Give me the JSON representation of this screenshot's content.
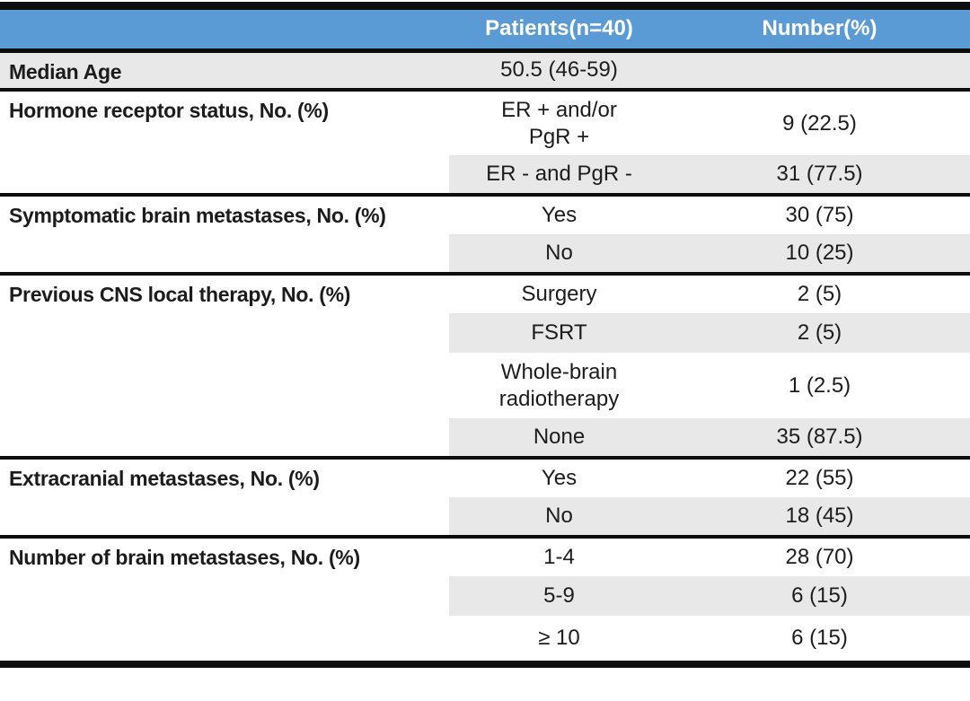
{
  "table": {
    "columns": [
      "",
      "Patients(n=40)",
      "Number(%)"
    ],
    "groups": [
      {
        "label": "Median Age",
        "full_row_shade": true,
        "rows": [
          {
            "category": "50.5 (46-59)",
            "value": "",
            "shaded": true
          }
        ]
      },
      {
        "label": "Hormone receptor status, No. (%)",
        "full_row_shade": false,
        "rows": [
          {
            "category": "ER + and/or\nPgR +",
            "value": "9 (22.5)",
            "shaded": false
          },
          {
            "category": "ER - and PgR -",
            "value": "31 (77.5)",
            "shaded": true
          }
        ]
      },
      {
        "label": "Symptomatic brain metastases, No. (%)",
        "full_row_shade": false,
        "rows": [
          {
            "category": "Yes",
            "value": "30 (75)",
            "shaded": false
          },
          {
            "category": "No",
            "value": "10 (25)",
            "shaded": true
          }
        ]
      },
      {
        "label": "Previous CNS local therapy, No. (%)",
        "full_row_shade": false,
        "rows": [
          {
            "category": "Surgery",
            "value": "2 (5)",
            "shaded": false
          },
          {
            "category": "FSRT",
            "value": "2 (5)",
            "shaded": true
          },
          {
            "category": "Whole-brain\nradiotherapy",
            "value": "1 (2.5)",
            "shaded": false
          },
          {
            "category": "None",
            "value": "35 (87.5)",
            "shaded": true
          }
        ]
      },
      {
        "label": "Extracranial metastases, No. (%)",
        "full_row_shade": false,
        "rows": [
          {
            "category": "Yes",
            "value": "22 (55)",
            "shaded": false
          },
          {
            "category": "No",
            "value": "18 (45)",
            "shaded": true
          }
        ]
      },
      {
        "label": "Number of brain metastases, No. (%)",
        "full_row_shade": false,
        "rows": [
          {
            "category": "1-4",
            "value": "28 (70)",
            "shaded": false
          },
          {
            "category": "5-9",
            "value": "6 (15)",
            "shaded": true
          },
          {
            "category": "≥ 10",
            "value": "6 (15)",
            "shaded": false
          }
        ]
      }
    ],
    "colors": {
      "header_bg": "#5b9bd5",
      "header_text": "#ffffff",
      "shade": "#e9e8e8",
      "rule": "#0d0d0d"
    }
  }
}
